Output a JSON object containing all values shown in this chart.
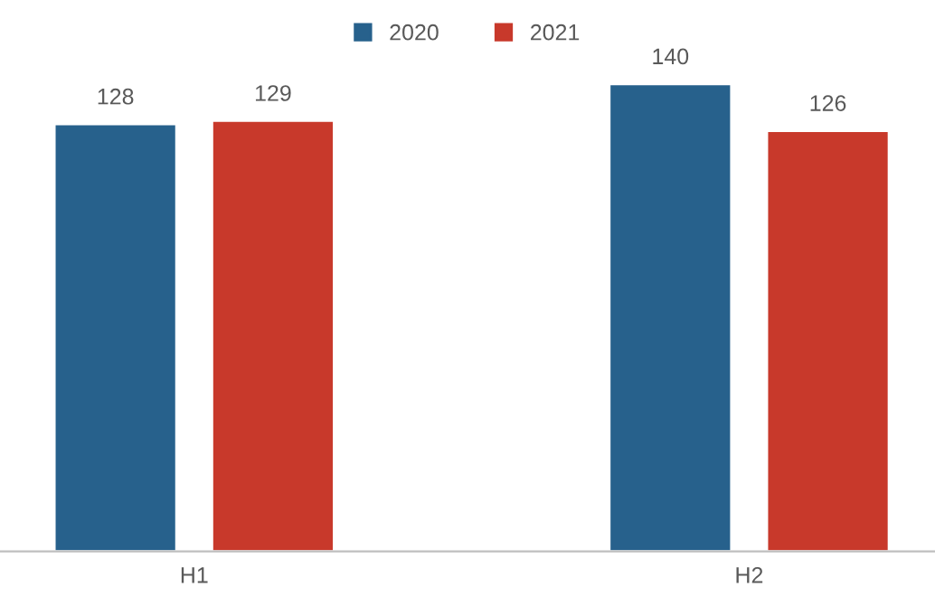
{
  "chart_data": {
    "type": "bar",
    "categories": [
      "H1",
      "H2"
    ],
    "series": [
      {
        "name": "2020",
        "color": "#27618c",
        "values": [
          128,
          140
        ]
      },
      {
        "name": "2021",
        "color": "#c8392b",
        "values": [
          129,
          126
        ]
      }
    ],
    "tick_labels": "x",
    "data_labels": true,
    "legend": "top",
    "grid": false
  }
}
